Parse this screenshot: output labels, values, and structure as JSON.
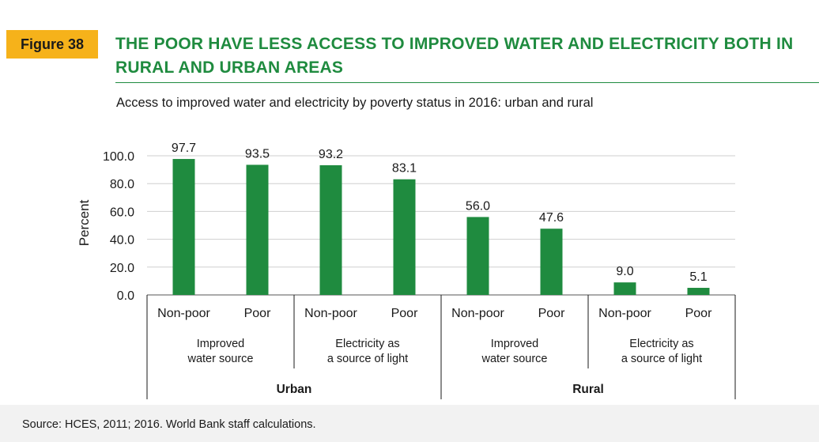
{
  "figure_label": "Figure 38",
  "title": "THE POOR HAVE LESS ACCESS TO IMPROVED WATER AND ELECTRICITY BOTH IN RURAL AND URBAN AREAS",
  "subtitle": "Access to improved water and electricity by poverty status in 2016: urban and rural",
  "source": "Source: HCES, 2011; 2016. World Bank staff calculations.",
  "colors": {
    "bar": "#1f8b3f",
    "title": "#1f8b3f",
    "badge": "#f6b21a"
  },
  "chart_data": {
    "type": "bar",
    "ylabel": "Percent",
    "ylim": [
      0,
      100
    ],
    "yticks": [
      "0.0",
      "20.0",
      "40.0",
      "60.0",
      "80.0",
      "100.0"
    ],
    "grid": true,
    "categories": [
      "Non-poor",
      "Poor",
      "Non-poor",
      "Poor",
      "Non-poor",
      "Poor",
      "Non-poor",
      "Poor"
    ],
    "values": [
      97.7,
      93.5,
      93.2,
      83.1,
      56.0,
      47.6,
      9.0,
      5.1
    ],
    "value_labels": [
      "97.7",
      "93.5",
      "93.2",
      "83.1",
      "56.0",
      "47.6",
      "9.0",
      "5.1"
    ],
    "subgroups": [
      {
        "line1": "Improved",
        "line2": "water source"
      },
      {
        "line1": "Electricity as",
        "line2": "a source of light"
      },
      {
        "line1": "Improved",
        "line2": "water source"
      },
      {
        "line1": "Electricity as",
        "line2": "a source of light"
      }
    ],
    "groups": [
      "Urban",
      "Rural"
    ]
  }
}
